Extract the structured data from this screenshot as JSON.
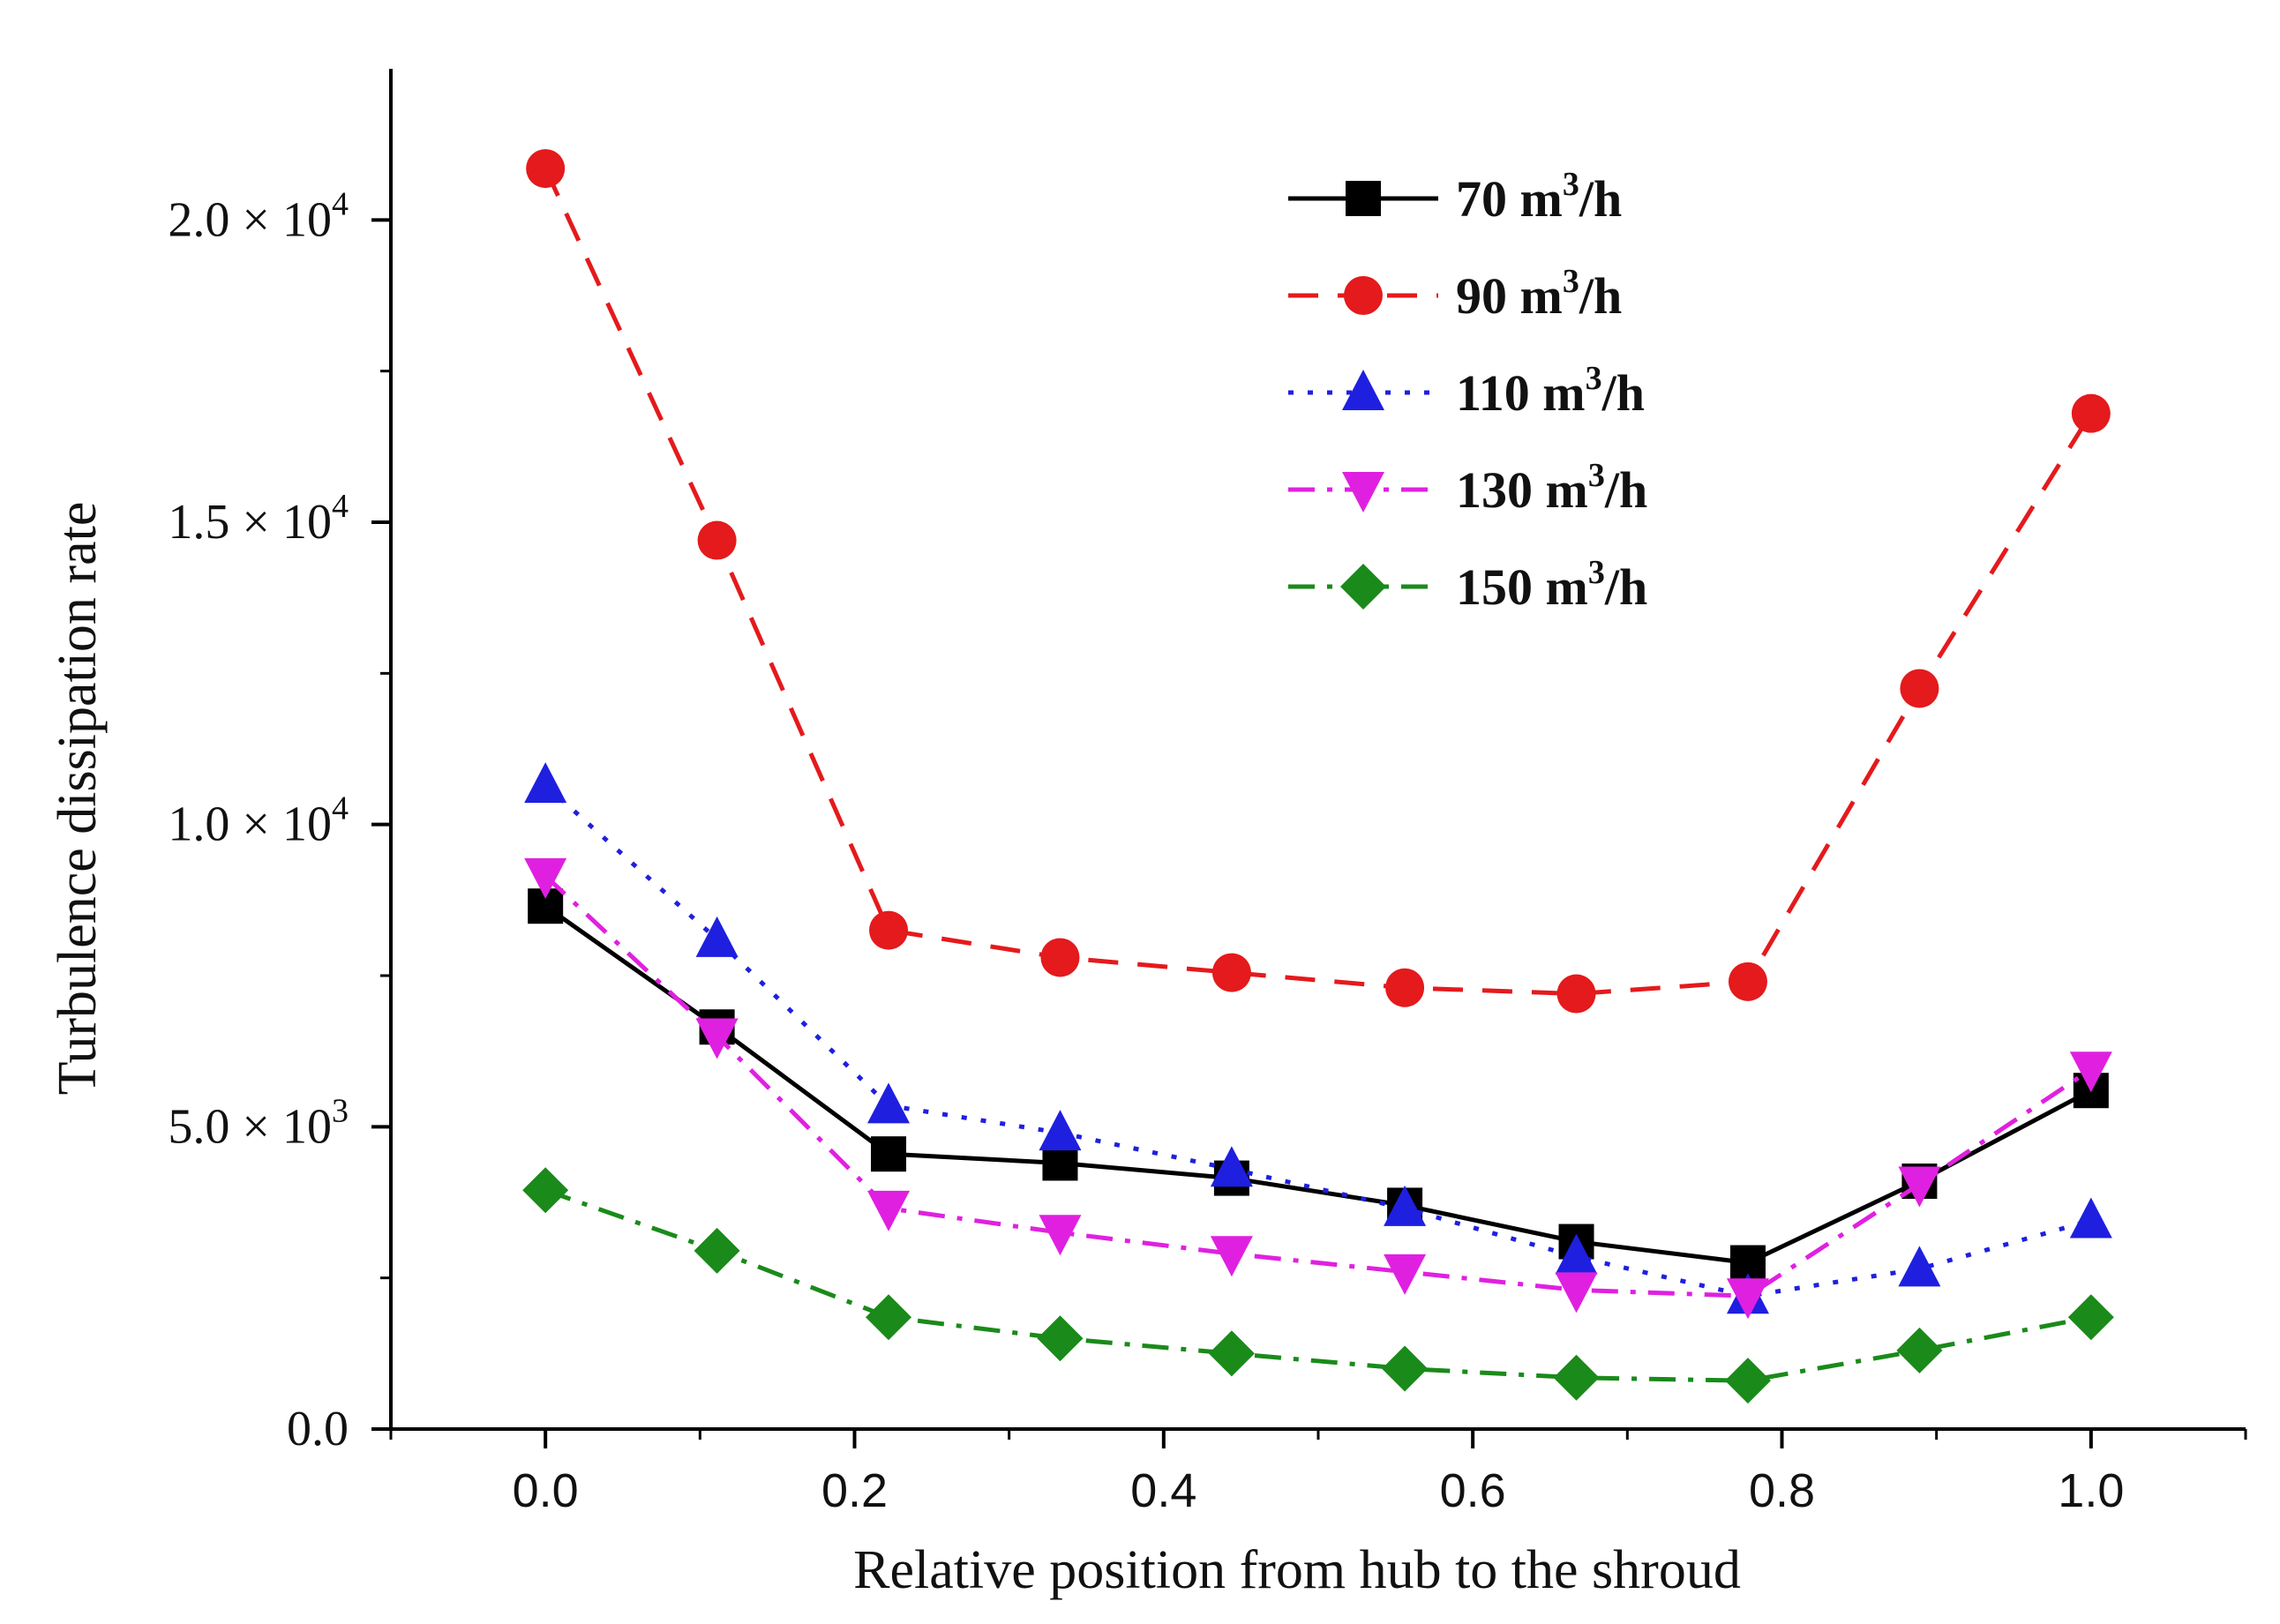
{
  "chart_data": {
    "type": "line",
    "xlabel": "Relative position from hub to the shroud",
    "ylabel": "Turbulence dissipation rate",
    "xlim": [
      -0.1,
      1.1
    ],
    "ylim": [
      0,
      22500
    ],
    "x": [
      0.0,
      0.111,
      0.222,
      0.333,
      0.444,
      0.556,
      0.667,
      0.778,
      0.889,
      1.0
    ],
    "x_ticks": [
      0.0,
      0.2,
      0.4,
      0.6,
      0.8,
      1.0
    ],
    "x_tick_labels": [
      "0.0",
      "0.2",
      "0.4",
      "0.6",
      "0.8",
      "1.0"
    ],
    "y_ticks": [
      0,
      5000,
      10000,
      15000,
      20000
    ],
    "y_tick_labels": [
      {
        "mantissa": "0.0",
        "exp": ""
      },
      {
        "mantissa": "5.0 × 10",
        "exp": "3"
      },
      {
        "mantissa": "1.0 × 10",
        "exp": "4"
      },
      {
        "mantissa": "1.5 × 10",
        "exp": "4"
      },
      {
        "mantissa": "2.0 × 10",
        "exp": "4"
      }
    ],
    "legend_position": "top-center",
    "grid": false,
    "series": [
      {
        "name": "70 m³/h",
        "name_base": "70 m",
        "name_sup": "3",
        "name_tail": "/h",
        "color": "#000000",
        "dash": "solid",
        "marker": "square",
        "values": [
          8650,
          6650,
          4550,
          4400,
          4150,
          3700,
          3100,
          2750,
          4100,
          5600
        ]
      },
      {
        "name": "90 m³/h",
        "name_base": "90 m",
        "name_sup": "3",
        "name_tail": "/h",
        "color": "#e41a1c",
        "dash": "dash",
        "marker": "circle",
        "values": [
          20850,
          14700,
          8250,
          7800,
          7550,
          7300,
          7200,
          7400,
          12250,
          16800
        ]
      },
      {
        "name": "110 m³/h",
        "name_base": "110 m",
        "name_sup": "3",
        "name_tail": "/h",
        "color": "#1f1fe0",
        "dash": "dot",
        "marker": "triangle-up",
        "values": [
          10650,
          8100,
          5350,
          4900,
          4300,
          3650,
          2850,
          2200,
          2650,
          3450
        ]
      },
      {
        "name": "130 m³/h",
        "name_base": "130 m",
        "name_sup": "3",
        "name_tail": "/h",
        "color": "#e020e0",
        "dash": "dashdot",
        "marker": "triangle-down",
        "values": [
          9150,
          6500,
          3650,
          3250,
          2900,
          2600,
          2300,
          2200,
          4050,
          5950
        ]
      },
      {
        "name": "150 m³/h",
        "name_base": "150 m",
        "name_sup": "3",
        "name_tail": "/h",
        "color": "#1a8a1a",
        "dash": "dashdot",
        "marker": "diamond",
        "values": [
          3950,
          2950,
          1850,
          1500,
          1250,
          1000,
          850,
          800,
          1300,
          1850
        ]
      }
    ]
  }
}
